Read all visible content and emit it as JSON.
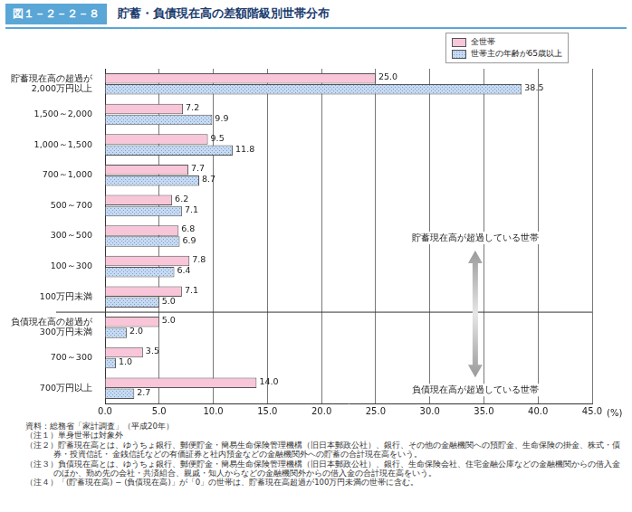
{
  "chart_data": {
    "type": "bar",
    "figure_label": "図１－２－２－８",
    "title": "貯蓄・負債現在高の差額階級別世帯分布",
    "orientation": "horizontal",
    "categories": [
      "貯蓄現在高の超過が\n2,000万円以上",
      "1,500～2,000",
      "1,000～1,500",
      "700～1,000",
      "500～700",
      "300～500",
      "100～300",
      "100万円未満",
      "負債現在高の超過が\n300万円未満",
      "700～300",
      "700万円以上"
    ],
    "series": [
      {
        "name": "全世帯",
        "color": "#f8c6d8",
        "values": [
          25.0,
          7.2,
          9.5,
          7.7,
          6.2,
          6.8,
          7.8,
          7.1,
          5.0,
          3.5,
          14.0
        ],
        "value_labels": [
          "25.0",
          "7.2",
          "9.5",
          "7.7",
          "6.2",
          "6.8",
          "7.8",
          "7.1",
          "5.0",
          "3.5",
          "14.0"
        ]
      },
      {
        "name": "世帯主の年齢が65歳以上",
        "color": "#c6daf2",
        "values": [
          38.5,
          9.9,
          11.8,
          8.7,
          7.1,
          6.9,
          6.4,
          5.0,
          2.0,
          1.0,
          2.7
        ],
        "value_labels": [
          "38.5",
          "9.9",
          "11.8",
          "8.7",
          "7.1",
          "6.9",
          "6.4",
          "5.0",
          "2.0",
          "1.0",
          "2.7"
        ]
      }
    ],
    "x_label": "(%)",
    "xlim": [
      0,
      45
    ],
    "xticks": [
      {
        "value": 0,
        "label": "0.0"
      },
      {
        "value": 5,
        "label": "5.0"
      },
      {
        "value": 10,
        "label": "10.0"
      },
      {
        "value": 15,
        "label": "15.0"
      },
      {
        "value": 20,
        "label": "20.0"
      },
      {
        "value": 25,
        "label": "25.0"
      },
      {
        "value": 30,
        "label": "30.0"
      },
      {
        "value": 35,
        "label": "35.0"
      },
      {
        "value": 40,
        "label": "40.0"
      },
      {
        "value": 45,
        "label": "45.0"
      }
    ],
    "grid": true,
    "legend": "upper right",
    "data_labels": true,
    "annotations": [
      "貯蓄現在高が超過している世帯",
      "負債現在高が超過している世帯"
    ],
    "notes": [
      "資料：総務省「家計調査」（平成20年）",
      "（注１）単身世帯は対象外",
      "（注２）貯蓄現在高とは、ゆうちょ銀行、郵便貯金・簡易生命保険管理機構（旧日本郵政公社）、銀行、その他の金融機関への預貯金、生命保険の掛金、株式・債券・投資信託・ 金銭信託などの有価証券と社内預金などの金融機関外への貯蓄の合計現在高をいう。",
      "（注３）負債現在高とは、ゆうちょ銀行、郵便貯金・簡易生命保険管理機構（旧日本郵政公社）、銀行、生命保険会社、住宅金融公庫などの金融機関からの借入金のほか、勤め先の会社・共済組合、親戚・知人からなどの金融機関外からの借入金の合計現在高をいう。",
      "（注４）「(貯蓄現在高) − (負債現在高)」が「0」の世帯は、貯蓄現在高超過が100万円未満の世帯に含む。"
    ]
  }
}
